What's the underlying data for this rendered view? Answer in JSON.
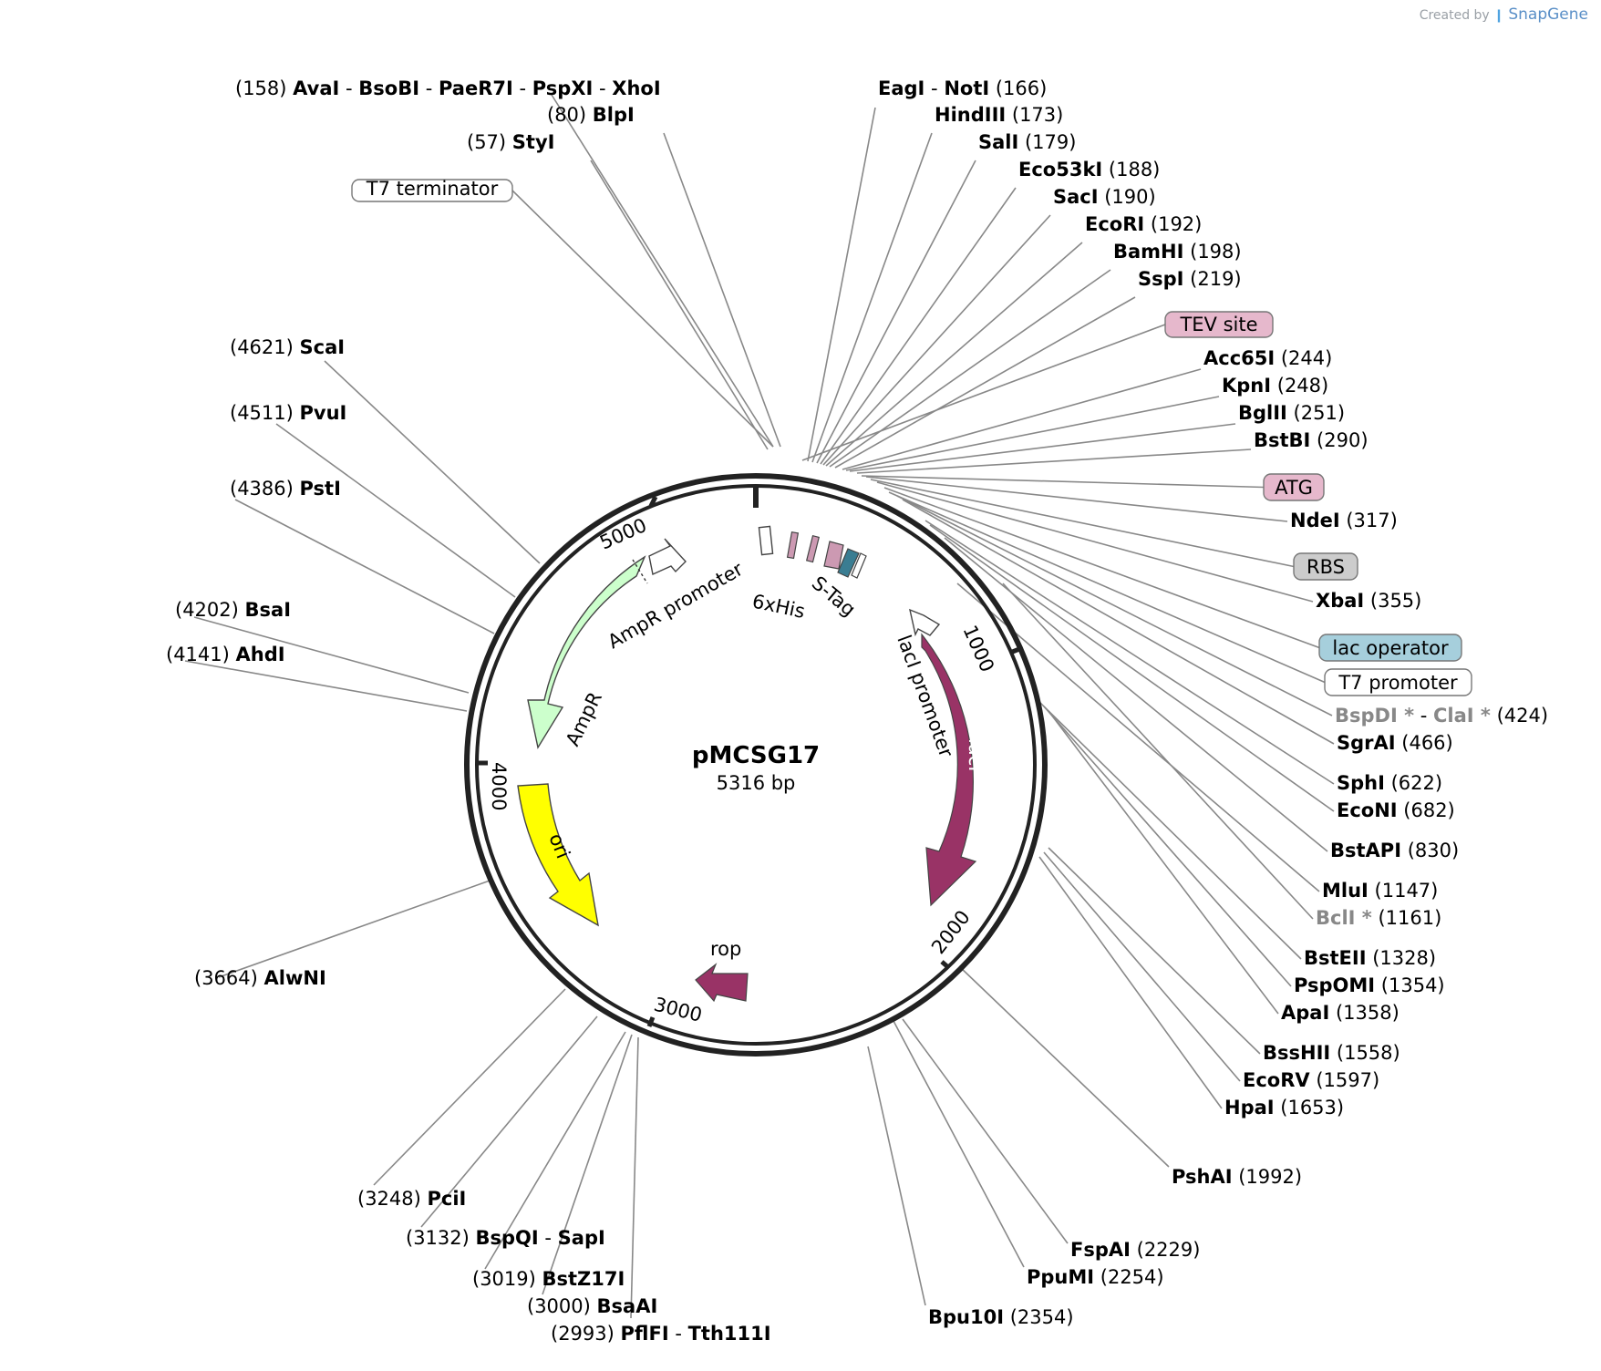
{
  "credit": {
    "prefix": "Created by",
    "brand": "SnapGene"
  },
  "plasmid": {
    "name": "pMCSG17",
    "size_label": "5316 bp",
    "length": 5316
  },
  "ticks": [
    "1000",
    "2000",
    "3000",
    "4000",
    "5000"
  ],
  "features": [
    {
      "label": "AmpR",
      "color": "#ccffcc"
    },
    {
      "label": "AmpR promoter",
      "color": "#ffffff"
    },
    {
      "label": "ori",
      "color": "#ffff00"
    },
    {
      "label": "rop",
      "color": "#993366"
    },
    {
      "label": "lacI",
      "color": "#993366"
    },
    {
      "label": "lacI promoter",
      "color": "#ffffff"
    },
    {
      "label": "6xHis",
      "color": "#cc99b2"
    },
    {
      "label": "S-Tag",
      "color": "#cc99b2"
    }
  ],
  "boxed": [
    {
      "label": "T7 terminator",
      "fill": "#ffffff"
    },
    {
      "label": "TEV site",
      "fill": "#e6b8cc"
    },
    {
      "label": "ATG",
      "fill": "#e6b8cc"
    },
    {
      "label": "RBS",
      "fill": "#cccccc"
    },
    {
      "label": "lac operator",
      "fill": "#a6cfdc"
    },
    {
      "label": "T7 promoter",
      "fill": "#ffffff"
    }
  ],
  "sites": [
    {
      "pos": "(158)",
      "names": [
        "AvaI",
        "BsoBI",
        "PaeR7I",
        "PspXI",
        "XhoI"
      ]
    },
    {
      "pos": "(80)",
      "names": [
        "BlpI"
      ]
    },
    {
      "pos": "(57)",
      "names": [
        "StyI"
      ]
    },
    {
      "pos": "(166)",
      "names": [
        "EagI",
        "NotI"
      ]
    },
    {
      "pos": "(173)",
      "names": [
        "HindIII"
      ]
    },
    {
      "pos": "(179)",
      "names": [
        "SalI"
      ]
    },
    {
      "pos": "(188)",
      "names": [
        "Eco53kI"
      ]
    },
    {
      "pos": "(190)",
      "names": [
        "SacI"
      ]
    },
    {
      "pos": "(192)",
      "names": [
        "EcoRI"
      ]
    },
    {
      "pos": "(198)",
      "names": [
        "BamHI"
      ]
    },
    {
      "pos": "(219)",
      "names": [
        "SspI"
      ]
    },
    {
      "pos": "(244)",
      "names": [
        "Acc65I"
      ]
    },
    {
      "pos": "(248)",
      "names": [
        "KpnI"
      ]
    },
    {
      "pos": "(251)",
      "names": [
        "BglII"
      ]
    },
    {
      "pos": "(290)",
      "names": [
        "BstBI"
      ]
    },
    {
      "pos": "(317)",
      "names": [
        "NdeI"
      ]
    },
    {
      "pos": "(355)",
      "names": [
        "XbaI"
      ]
    },
    {
      "pos": "(424)",
      "names": [
        "BspDI *",
        "ClaI *"
      ]
    },
    {
      "pos": "(466)",
      "names": [
        "SgrAI"
      ]
    },
    {
      "pos": "(622)",
      "names": [
        "SphI"
      ]
    },
    {
      "pos": "(682)",
      "names": [
        "EcoNI"
      ]
    },
    {
      "pos": "(830)",
      "names": [
        "BstAPI"
      ]
    },
    {
      "pos": "(1147)",
      "names": [
        "MluI"
      ]
    },
    {
      "pos": "(1161)",
      "names": [
        "BclI *"
      ]
    },
    {
      "pos": "(1328)",
      "names": [
        "BstEII"
      ]
    },
    {
      "pos": "(1354)",
      "names": [
        "PspOMI"
      ]
    },
    {
      "pos": "(1358)",
      "names": [
        "ApaI"
      ]
    },
    {
      "pos": "(1558)",
      "names": [
        "BssHII"
      ]
    },
    {
      "pos": "(1597)",
      "names": [
        "EcoRV"
      ]
    },
    {
      "pos": "(1653)",
      "names": [
        "HpaI"
      ]
    },
    {
      "pos": "(1992)",
      "names": [
        "PshAI"
      ]
    },
    {
      "pos": "(2229)",
      "names": [
        "FspAI"
      ]
    },
    {
      "pos": "(2254)",
      "names": [
        "PpuMI"
      ]
    },
    {
      "pos": "(2354)",
      "names": [
        "Bpu10I"
      ]
    },
    {
      "pos": "(4621)",
      "names": [
        "ScaI"
      ]
    },
    {
      "pos": "(4511)",
      "names": [
        "PvuI"
      ]
    },
    {
      "pos": "(4386)",
      "names": [
        "PstI"
      ]
    },
    {
      "pos": "(4202)",
      "names": [
        "BsaI"
      ]
    },
    {
      "pos": "(4141)",
      "names": [
        "AhdI"
      ]
    },
    {
      "pos": "(3664)",
      "names": [
        "AlwNI"
      ]
    },
    {
      "pos": "(3248)",
      "names": [
        "PciI"
      ]
    },
    {
      "pos": "(3132)",
      "names": [
        "BspQI",
        "SapI"
      ]
    },
    {
      "pos": "(3019)",
      "names": [
        "BstZ17I"
      ]
    },
    {
      "pos": "(3000)",
      "names": [
        "BsaAI"
      ]
    },
    {
      "pos": "(2993)",
      "names": [
        "PflFI",
        "Tth111I"
      ]
    }
  ]
}
